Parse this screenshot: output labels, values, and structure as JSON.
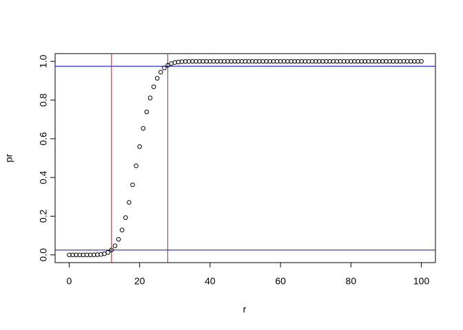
{
  "chart_data": {
    "type": "scatter",
    "x_label": "r",
    "y_label": "pr",
    "x": [
      0,
      1,
      2,
      3,
      4,
      5,
      6,
      7,
      8,
      9,
      10,
      11,
      12,
      13,
      14,
      15,
      16,
      17,
      18,
      19,
      20,
      21,
      22,
      23,
      24,
      25,
      26,
      27,
      28,
      29,
      30,
      31,
      32,
      33,
      34,
      35,
      36,
      37,
      38,
      39,
      40,
      41,
      42,
      43,
      44,
      45,
      46,
      47,
      48,
      49,
      50,
      51,
      52,
      53,
      54,
      55,
      56,
      57,
      58,
      59,
      60,
      61,
      62,
      63,
      64,
      65,
      66,
      67,
      68,
      69,
      70,
      71,
      72,
      73,
      74,
      75,
      76,
      77,
      78,
      79,
      80,
      81,
      82,
      83,
      84,
      85,
      86,
      87,
      88,
      89,
      90,
      91,
      92,
      93,
      94,
      95,
      96,
      97,
      98,
      99,
      100
    ],
    "values": [
      0,
      0,
      0,
      0,
      0,
      0,
      0,
      0.0003,
      0.0009,
      0.0023,
      0.0057,
      0.0126,
      0.0253,
      0.0469,
      0.0804,
      0.1285,
      0.1923,
      0.2712,
      0.3621,
      0.4602,
      0.5595,
      0.654,
      0.7389,
      0.8109,
      0.8686,
      0.9125,
      0.9442,
      0.9658,
      0.98,
      0.9888,
      0.9939,
      0.9969,
      0.9984,
      0.9993,
      0.9997,
      0.9999,
      1,
      1,
      1,
      1,
      1,
      1,
      1,
      1,
      1,
      1,
      1,
      1,
      1,
      1,
      1,
      1,
      1,
      1,
      1,
      1,
      1,
      1,
      1,
      1,
      1,
      1,
      1,
      1,
      1,
      1,
      1,
      1,
      1,
      1,
      1,
      1,
      1,
      1,
      1,
      1,
      1,
      1,
      1,
      1,
      1,
      1,
      1,
      1,
      1,
      1,
      1,
      1,
      1,
      1,
      1,
      1,
      1,
      1,
      1,
      1,
      1,
      1,
      1,
      1,
      1
    ],
    "color": "#000000",
    "xlim": [
      -4,
      104
    ],
    "ylim": [
      -0.04,
      1.04
    ],
    "xticks": [
      0,
      20,
      40,
      60,
      80,
      100
    ],
    "yticks": [
      {
        "value": 0,
        "label": "0.0"
      },
      {
        "value": 0.2,
        "label": "0.2"
      },
      {
        "value": 0.4,
        "label": "0.4"
      },
      {
        "value": 0.6,
        "label": "0.6"
      },
      {
        "value": 0.8,
        "label": "0.8"
      },
      {
        "value": 1,
        "label": "1.0"
      }
    ],
    "hlines": [
      0.025,
      0.975
    ],
    "hline_color": "#0000ff",
    "vlines": [
      12,
      28
    ],
    "vline_color": "#ff0000"
  }
}
